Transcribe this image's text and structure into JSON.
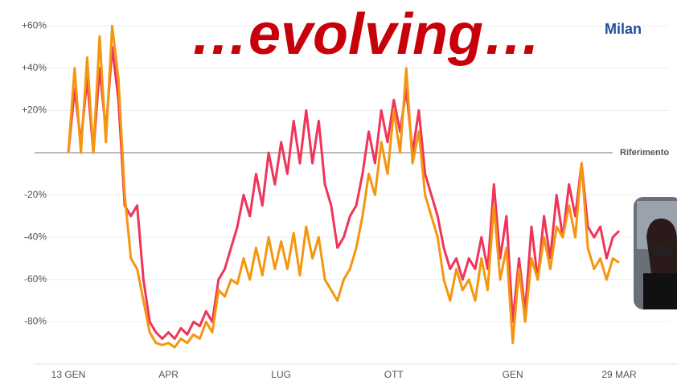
{
  "chart_data": {
    "type": "line",
    "title": "…evolving…",
    "subtitle": "Milan",
    "reference": 0,
    "reference_label": "Riferimento",
    "grid": true,
    "ylim": [
      -100,
      72
    ],
    "yticks": [
      {
        "value": 60,
        "label": "+60%"
      },
      {
        "value": 40,
        "label": "+40%"
      },
      {
        "value": 20,
        "label": "+20%"
      },
      {
        "value": -20,
        "label": "-20%"
      },
      {
        "value": -40,
        "label": "-40%"
      },
      {
        "value": -60,
        "label": "-60%"
      },
      {
        "value": -80,
        "label": "-80%"
      }
    ],
    "categories": [
      "13 GEN",
      null,
      null,
      null,
      null,
      null,
      null,
      null,
      null,
      null,
      null,
      null,
      null,
      null,
      null,
      null,
      "APR",
      null,
      null,
      null,
      null,
      null,
      null,
      null,
      null,
      null,
      null,
      null,
      null,
      null,
      null,
      null,
      null,
      null,
      "LUG",
      null,
      null,
      null,
      null,
      null,
      null,
      null,
      null,
      null,
      null,
      null,
      null,
      null,
      null,
      null,
      null,
      null,
      "OTT",
      null,
      null,
      null,
      null,
      null,
      null,
      null,
      null,
      null,
      null,
      null,
      null,
      null,
      null,
      null,
      null,
      null,
      null,
      "GEN",
      null,
      null,
      null,
      null,
      null,
      null,
      null,
      null,
      null,
      null,
      null,
      null,
      null,
      null,
      null,
      null,
      "29 MAR"
    ],
    "series": [
      {
        "color": "#f0345a",
        "values": [
          0,
          30,
          5,
          35,
          0,
          40,
          10,
          50,
          25,
          -25,
          -30,
          -25,
          -60,
          -80,
          -85,
          -88,
          -85,
          -88,
          -83,
          -86,
          -80,
          -82,
          -75,
          -80,
          -60,
          -55,
          -45,
          -35,
          -20,
          -30,
          -10,
          -25,
          0,
          -15,
          5,
          -10,
          15,
          -5,
          20,
          -5,
          15,
          -15,
          -25,
          -45,
          -40,
          -30,
          -25,
          -10,
          10,
          -5,
          20,
          5,
          25,
          10,
          30,
          0,
          20,
          -10,
          -20,
          -30,
          -45,
          -55,
          -50,
          -60,
          -50,
          -55,
          -40,
          -55,
          -15,
          -50,
          -30,
          -80,
          -50,
          -75,
          -35,
          -60,
          -30,
          -50,
          -20,
          -40,
          -15,
          -30,
          -5,
          -35,
          -40,
          -35,
          -50,
          -40,
          -37
        ]
      },
      {
        "color": "#f5960f",
        "values": [
          0,
          40,
          0,
          45,
          0,
          55,
          5,
          60,
          35,
          -20,
          -50,
          -55,
          -70,
          -85,
          -90,
          -91,
          -90,
          -92,
          -88,
          -90,
          -86,
          -88,
          -80,
          -85,
          -65,
          -68,
          -60,
          -62,
          -50,
          -60,
          -45,
          -58,
          -40,
          -55,
          -42,
          -55,
          -38,
          -58,
          -35,
          -50,
          -40,
          -60,
          -65,
          -70,
          -60,
          -55,
          -45,
          -30,
          -10,
          -20,
          5,
          -10,
          20,
          0,
          40,
          -5,
          10,
          -20,
          -30,
          -40,
          -60,
          -70,
          -55,
          -65,
          -60,
          -70,
          -50,
          -65,
          -25,
          -60,
          -45,
          -90,
          -55,
          -80,
          -50,
          -60,
          -40,
          -55,
          -35,
          -40,
          -25,
          -40,
          -5,
          -45,
          -55,
          -50,
          -60,
          -50,
          -52
        ]
      }
    ]
  }
}
